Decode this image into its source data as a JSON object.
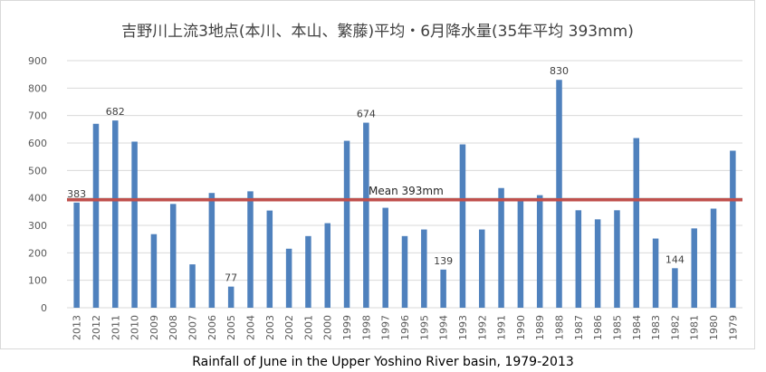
{
  "colors": {
    "bar": "#4f81bd",
    "mean_line": "#c0504d",
    "grid": "#d9d9d9"
  },
  "chart_data": {
    "type": "bar",
    "title": "吉野川上流3地点(本川、本山、繁藤)平均・6月降水量(35年平均 393mm)",
    "caption": "Rainfall of June in the Upper Yoshino River basin, 1979-2013",
    "xlabel": "",
    "ylabel": "",
    "ylim": [
      0,
      900
    ],
    "yticks": [
      "0",
      "100",
      "200",
      "300",
      "400",
      "500",
      "600",
      "700",
      "800",
      "900"
    ],
    "grid": true,
    "categories": [
      "2013",
      "2012",
      "2011",
      "2010",
      "2009",
      "2008",
      "2007",
      "2006",
      "2005",
      "2004",
      "2003",
      "2002",
      "2001",
      "2000",
      "1999",
      "1998",
      "1997",
      "1996",
      "1995",
      "1994",
      "1993",
      "1992",
      "1991",
      "1990",
      "1989",
      "1988",
      "1987",
      "1986",
      "1985",
      "1984",
      "1983",
      "1982",
      "1981",
      "1980",
      "1979"
    ],
    "values": [
      383,
      670,
      682,
      605,
      268,
      378,
      158,
      418,
      77,
      424,
      354,
      215,
      261,
      308,
      608,
      674,
      364,
      261,
      285,
      139,
      595,
      285,
      436,
      393,
      410,
      830,
      355,
      322,
      355,
      618,
      252,
      144,
      289,
      361,
      572
    ],
    "data_labels": [
      {
        "category": "2013",
        "text": "383"
      },
      {
        "category": "2011",
        "text": "682"
      },
      {
        "category": "2005",
        "text": "77"
      },
      {
        "category": "1998",
        "text": "674"
      },
      {
        "category": "1994",
        "text": "139"
      },
      {
        "category": "1988",
        "text": "830"
      },
      {
        "category": "1982",
        "text": "144"
      }
    ],
    "mean": {
      "value": 393,
      "label": "Mean 393mm"
    }
  }
}
